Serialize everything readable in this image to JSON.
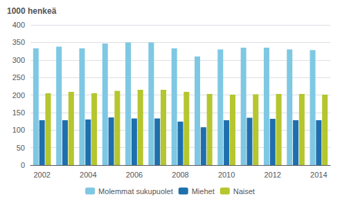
{
  "chart_data": {
    "type": "bar",
    "ylabel": "1000 henkeä",
    "categories": [
      "2002",
      null,
      "2004",
      null,
      "2006",
      null,
      "2008",
      null,
      "2010",
      null,
      "2012",
      null,
      "2014"
    ],
    "series": [
      {
        "name": "Molemmat sukupuolet",
        "color": "#7ec8e3",
        "values": [
          333,
          338,
          333,
          347,
          350,
          350,
          333,
          310,
          330,
          335,
          335,
          330,
          328
        ]
      },
      {
        "name": "Miehet",
        "color": "#1f6fad",
        "values": [
          128,
          128,
          130,
          136,
          133,
          133,
          124,
          108,
          128,
          135,
          132,
          128,
          128
        ]
      },
      {
        "name": "Naiset",
        "color": "#b5c62e",
        "values": [
          205,
          209,
          205,
          212,
          215,
          215,
          209,
          203,
          201,
          202,
          203,
          203,
          201
        ]
      }
    ],
    "ylim": [
      0,
      400
    ],
    "yticks": [
      0,
      50,
      100,
      150,
      200,
      250,
      300,
      350,
      400
    ],
    "grid": true,
    "legend": "bottom"
  }
}
